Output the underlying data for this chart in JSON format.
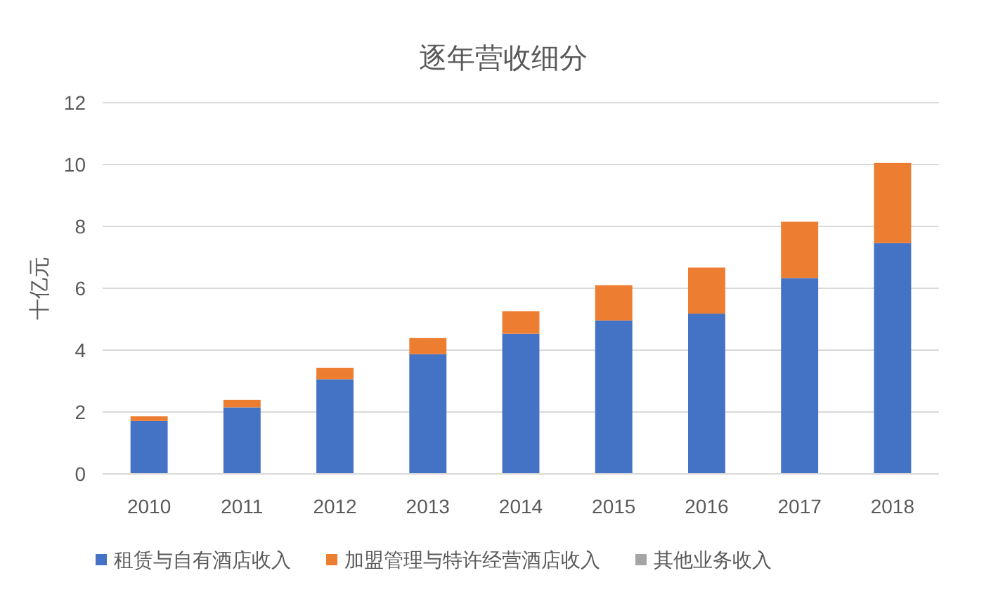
{
  "chart_data": {
    "type": "bar",
    "title": "逐年营收细分",
    "ylabel": "十亿元",
    "categories": [
      "2010",
      "2011",
      "2012",
      "2013",
      "2014",
      "2015",
      "2016",
      "2017",
      "2018"
    ],
    "stacked": true,
    "series": [
      {
        "name": "租赁与自有酒店收入",
        "color": "#4472c4",
        "values": [
          1.71,
          2.15,
          3.06,
          3.87,
          4.53,
          4.96,
          5.18,
          6.33,
          7.46
        ]
      },
      {
        "name": "加盟管理与特许经营酒店收入",
        "color": "#ed7d31",
        "values": [
          0.15,
          0.24,
          0.37,
          0.52,
          0.73,
          1.14,
          1.49,
          1.82,
          2.59
        ]
      },
      {
        "name": "其他业务收入",
        "color": "#a5a5a5",
        "values": [
          0,
          0,
          0,
          0,
          0,
          0,
          0,
          0,
          0
        ]
      }
    ],
    "ylim": [
      0,
      12
    ],
    "yticks": [
      0,
      2,
      4,
      6,
      8,
      10,
      12
    ],
    "grid": "y",
    "legend": "bottom"
  }
}
